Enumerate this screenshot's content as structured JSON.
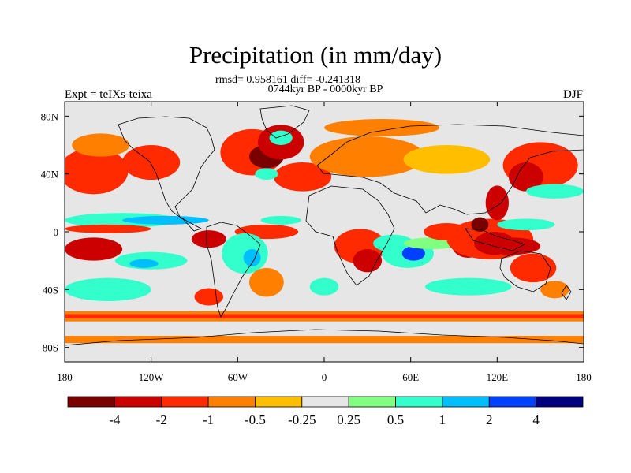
{
  "title": "Precipitation (in mm/day)",
  "stats": "rmsd= 0.958161 diff= -0.241318",
  "period": "0744kyr BP - 0000kyr BP",
  "experiment": "Expt = teIXs-teixa",
  "season": "DJF",
  "map": {
    "ocean_color": "#e6e6e6",
    "lon_range": [
      -180,
      180
    ],
    "lat_range": [
      -90,
      90
    ],
    "lon_ticks": [
      {
        "value": -180,
        "label": "180"
      },
      {
        "value": -120,
        "label": "120W"
      },
      {
        "value": -60,
        "label": "60W"
      },
      {
        "value": 0,
        "label": "0"
      },
      {
        "value": 60,
        "label": "60E"
      },
      {
        "value": 120,
        "label": "120E"
      },
      {
        "value": 180,
        "label": "180"
      }
    ],
    "lat_ticks": [
      {
        "value": 80,
        "label": "80N"
      },
      {
        "value": 40,
        "label": "40N"
      },
      {
        "value": 0,
        "label": "0"
      },
      {
        "value": -40,
        "label": "40S"
      },
      {
        "value": -80,
        "label": "80S"
      }
    ]
  },
  "colorbar": {
    "colors": [
      "#7a0000",
      "#cc0000",
      "#ff2a00",
      "#ff8000",
      "#ffbf00",
      "#e6e6e6",
      "#80ff80",
      "#33ffcc",
      "#00bfff",
      "#0040ff",
      "#000080"
    ],
    "labels": [
      "-4",
      "-2",
      "-1",
      "-0.5",
      "-0.25",
      "0.25",
      "0.5",
      "1",
      "2",
      "4"
    ]
  },
  "anomaly_regions": [
    {
      "lon": -160,
      "lat": 42,
      "rx": 24,
      "ry": 16,
      "level": -1
    },
    {
      "lon": -120,
      "lat": 48,
      "rx": 20,
      "ry": 12,
      "level": -1
    },
    {
      "lon": -155,
      "lat": 60,
      "rx": 20,
      "ry": 8,
      "level": -0.5
    },
    {
      "lon": -50,
      "lat": 55,
      "rx": 22,
      "ry": 16,
      "level": -1
    },
    {
      "lon": -40,
      "lat": 52,
      "rx": 12,
      "ry": 8,
      "level": -4
    },
    {
      "lon": -30,
      "lat": 62,
      "rx": 16,
      "ry": 12,
      "level": -2
    },
    {
      "lon": -15,
      "lat": 38,
      "rx": 20,
      "ry": 10,
      "level": -1
    },
    {
      "lon": -30,
      "lat": 65,
      "rx": 8,
      "ry": 5,
      "level": 1
    },
    {
      "lon": -40,
      "lat": 40,
      "rx": 8,
      "ry": 4,
      "level": 1
    },
    {
      "lon": 30,
      "lat": 52,
      "rx": 40,
      "ry": 14,
      "level": -0.5
    },
    {
      "lon": 40,
      "lat": 72,
      "rx": 40,
      "ry": 6,
      "level": -0.5
    },
    {
      "lon": 85,
      "lat": 50,
      "rx": 30,
      "ry": 10,
      "level": -0.25
    },
    {
      "lon": 150,
      "lat": 46,
      "rx": 26,
      "ry": 16,
      "level": -1
    },
    {
      "lon": 140,
      "lat": 38,
      "rx": 12,
      "ry": 10,
      "level": -2
    },
    {
      "lon": 160,
      "lat": 28,
      "rx": 20,
      "ry": 5,
      "level": 1
    },
    {
      "lon": -140,
      "lat": 8,
      "rx": 40,
      "ry": 5,
      "level": 1
    },
    {
      "lon": -110,
      "lat": 8,
      "rx": 30,
      "ry": 3,
      "level": 2
    },
    {
      "lon": -150,
      "lat": 2,
      "rx": 30,
      "ry": 3,
      "level": -1
    },
    {
      "lon": -40,
      "lat": 0,
      "rx": 22,
      "ry": 5,
      "level": -1
    },
    {
      "lon": -30,
      "lat": 8,
      "rx": 14,
      "ry": 3,
      "level": 1
    },
    {
      "lon": -160,
      "lat": -12,
      "rx": 20,
      "ry": 8,
      "level": -2
    },
    {
      "lon": -120,
      "lat": -20,
      "rx": 25,
      "ry": 6,
      "level": 1
    },
    {
      "lon": -125,
      "lat": -22,
      "rx": 10,
      "ry": 3,
      "level": 2
    },
    {
      "lon": -80,
      "lat": -5,
      "rx": 12,
      "ry": 6,
      "level": -2
    },
    {
      "lon": -55,
      "lat": -15,
      "rx": 16,
      "ry": 14,
      "level": 1
    },
    {
      "lon": -50,
      "lat": -18,
      "rx": 6,
      "ry": 6,
      "level": 2
    },
    {
      "lon": -40,
      "lat": -35,
      "rx": 12,
      "ry": 10,
      "level": -0.5
    },
    {
      "lon": 25,
      "lat": -10,
      "rx": 18,
      "ry": 12,
      "level": -1
    },
    {
      "lon": 30,
      "lat": -20,
      "rx": 10,
      "ry": 8,
      "level": -2
    },
    {
      "lon": 48,
      "lat": -8,
      "rx": 14,
      "ry": 6,
      "level": 1
    },
    {
      "lon": 58,
      "lat": -15,
      "rx": 18,
      "ry": 10,
      "level": 1
    },
    {
      "lon": 62,
      "lat": -15,
      "rx": 8,
      "ry": 5,
      "level": 4
    },
    {
      "lon": 75,
      "lat": -8,
      "rx": 20,
      "ry": 4,
      "level": 0.5
    },
    {
      "lon": 85,
      "lat": 0,
      "rx": 16,
      "ry": 6,
      "level": -1
    },
    {
      "lon": 100,
      "lat": -8,
      "rx": 12,
      "ry": 10,
      "level": -2
    },
    {
      "lon": 115,
      "lat": -5,
      "rx": 30,
      "ry": 14,
      "level": -1
    },
    {
      "lon": 118,
      "lat": -8,
      "rx": 14,
      "ry": 8,
      "level": -2
    },
    {
      "lon": 130,
      "lat": -10,
      "rx": 20,
      "ry": 6,
      "level": -2
    },
    {
      "lon": 120,
      "lat": 20,
      "rx": 8,
      "ry": 12,
      "level": -2
    },
    {
      "lon": 108,
      "lat": 5,
      "rx": 6,
      "ry": 5,
      "level": -4
    },
    {
      "lon": 140,
      "lat": 5,
      "rx": 20,
      "ry": 4,
      "level": 1
    },
    {
      "lon": 145,
      "lat": -25,
      "rx": 16,
      "ry": 10,
      "level": -1
    },
    {
      "lon": -150,
      "lat": -40,
      "rx": 30,
      "ry": 8,
      "level": 1
    },
    {
      "lon": -80,
      "lat": -45,
      "rx": 10,
      "ry": 6,
      "level": -1
    },
    {
      "lon": 0,
      "lat": -38,
      "rx": 10,
      "ry": 6,
      "level": 1
    },
    {
      "lon": 100,
      "lat": -38,
      "rx": 30,
      "ry": 6,
      "level": 1
    },
    {
      "lon": 160,
      "lat": -40,
      "rx": 10,
      "ry": 6,
      "level": -0.5
    }
  ],
  "zonal_bands": [
    {
      "lat_north": -55,
      "lat_south": -62,
      "level": -0.5
    },
    {
      "lat_north": -57,
      "lat_south": -60,
      "level": -1
    },
    {
      "lat_north": -72,
      "lat_south": -77,
      "level": -0.5
    }
  ]
}
